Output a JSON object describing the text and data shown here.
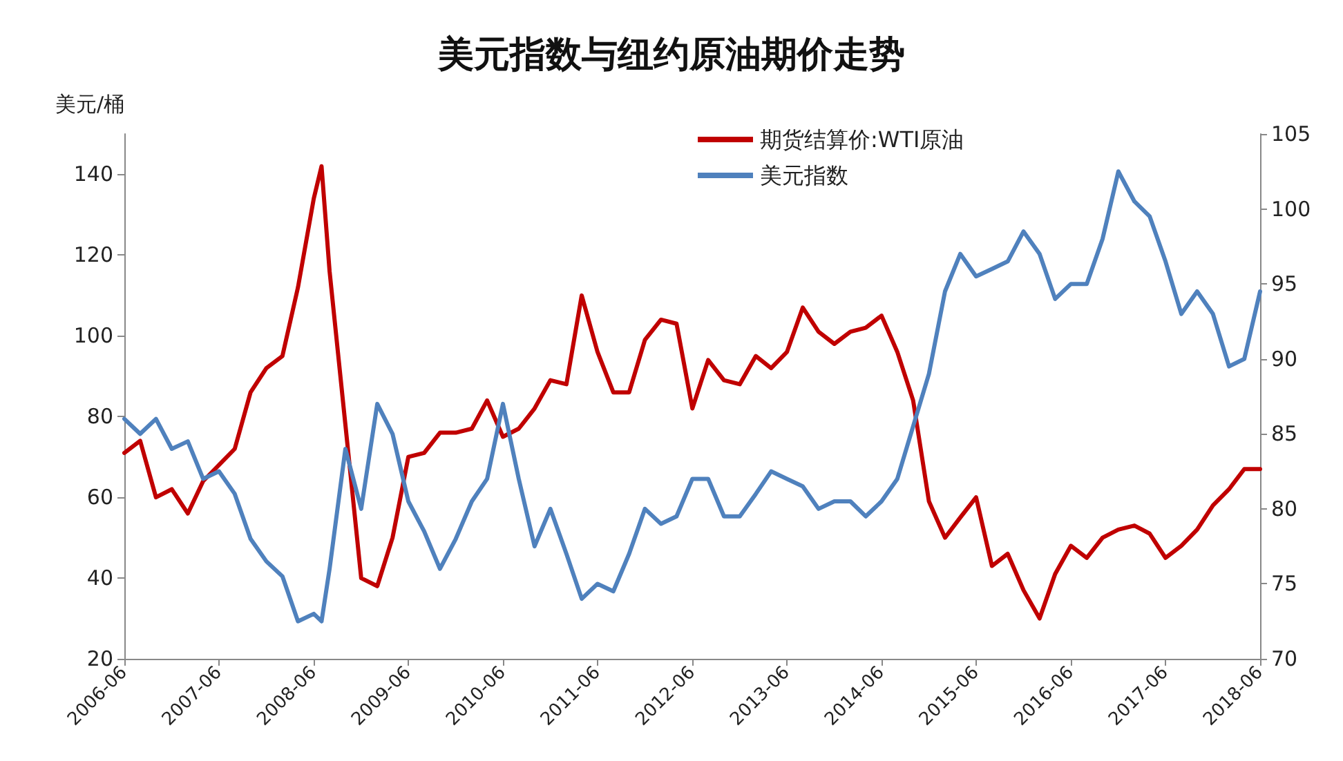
{
  "chart_data": {
    "type": "line",
    "title": "美元指数与纽约原油期价走势",
    "ylabel": "美元/桶",
    "x": [
      "2006-06",
      "2006-08",
      "2006-10",
      "2006-12",
      "2007-02",
      "2007-04",
      "2007-06",
      "2007-08",
      "2007-10",
      "2007-12",
      "2008-02",
      "2008-04",
      "2008-06",
      "2008-07",
      "2008-08",
      "2008-10",
      "2008-12",
      "2009-02",
      "2009-04",
      "2009-06",
      "2009-08",
      "2009-10",
      "2009-12",
      "2010-02",
      "2010-04",
      "2010-06",
      "2010-08",
      "2010-10",
      "2010-12",
      "2011-02",
      "2011-04",
      "2011-06",
      "2011-08",
      "2011-10",
      "2011-12",
      "2012-02",
      "2012-04",
      "2012-06",
      "2012-08",
      "2012-10",
      "2012-12",
      "2013-02",
      "2013-04",
      "2013-06",
      "2013-08",
      "2013-10",
      "2013-12",
      "2014-02",
      "2014-04",
      "2014-06",
      "2014-08",
      "2014-10",
      "2014-12",
      "2015-02",
      "2015-04",
      "2015-06",
      "2015-08",
      "2015-10",
      "2015-12",
      "2016-02",
      "2016-04",
      "2016-06",
      "2016-08",
      "2016-10",
      "2016-12",
      "2017-02",
      "2017-04",
      "2017-06",
      "2017-08",
      "2017-10",
      "2017-12",
      "2018-02",
      "2018-04",
      "2018-06"
    ],
    "series": [
      {
        "name": "期货结算价:WTI原油",
        "color": "#c00000",
        "values": [
          71,
          74,
          60,
          62,
          56,
          64,
          68,
          72,
          86,
          92,
          95,
          112,
          134,
          142,
          116,
          78,
          40,
          38,
          50,
          70,
          71,
          76,
          76,
          77,
          84,
          75,
          77,
          82,
          89,
          88,
          110,
          96,
          86,
          86,
          99,
          104,
          103,
          82,
          94,
          89,
          88,
          95,
          92,
          96,
          107,
          101,
          98,
          101,
          102,
          105,
          96,
          84,
          59,
          50,
          55,
          60,
          43,
          46,
          37,
          30,
          41,
          48,
          45,
          50,
          52,
          53,
          51,
          45,
          48,
          52,
          58,
          62,
          67,
          67
        ]
      },
      {
        "name": "美元指数",
        "color": "#4f81bd",
        "axis": "y2",
        "values": [
          86,
          85,
          86,
          84,
          84.5,
          82,
          82.5,
          81,
          78,
          76.5,
          75.5,
          72.5,
          73,
          72.5,
          76,
          84,
          80,
          87,
          85,
          80.5,
          78.5,
          76,
          78,
          80.5,
          82,
          87,
          82,
          77.5,
          80,
          77,
          74,
          75,
          74.5,
          77,
          80,
          79,
          79.5,
          82,
          82,
          79.5,
          79.5,
          81,
          82.5,
          82,
          81.5,
          80,
          80.5,
          80.5,
          79.5,
          80.5,
          82,
          85.5,
          89,
          94.5,
          97,
          95.5,
          96,
          96.5,
          98.5,
          97,
          94,
          95,
          95,
          98,
          102.5,
          100.5,
          99.5,
          96.5,
          93,
          94.5,
          93,
          89.5,
          90,
          94.5
        ]
      }
    ],
    "xlim": [
      "2006-06",
      "2018-06"
    ],
    "xticks": [
      {
        "value": "2006-06",
        "label": "2006-06"
      },
      {
        "value": "2007-06",
        "label": "2007-06"
      },
      {
        "value": "2008-06",
        "label": "2008-06"
      },
      {
        "value": "2009-06",
        "label": "2009-06"
      },
      {
        "value": "2010-06",
        "label": "2010-06"
      },
      {
        "value": "2011-06",
        "label": "2011-06"
      },
      {
        "value": "2012-06",
        "label": "2012-06"
      },
      {
        "value": "2013-06",
        "label": "2013-06"
      },
      {
        "value": "2014-06",
        "label": "2014-06"
      },
      {
        "value": "2015-06",
        "label": "2015-06"
      },
      {
        "value": "2016-06",
        "label": "2016-06"
      },
      {
        "value": "2017-06",
        "label": "2017-06"
      },
      {
        "value": "2018-06",
        "label": "2018-06"
      }
    ],
    "ylim": [
      20,
      150
    ],
    "yticks": [
      20,
      40,
      60,
      80,
      100,
      120,
      140
    ],
    "y2lim": [
      70,
      105
    ],
    "y2ticks": [
      70,
      75,
      80,
      85,
      90,
      95,
      100,
      105
    ],
    "grid": false,
    "legend": "top",
    "marker": "none",
    "line_style": "solid"
  }
}
